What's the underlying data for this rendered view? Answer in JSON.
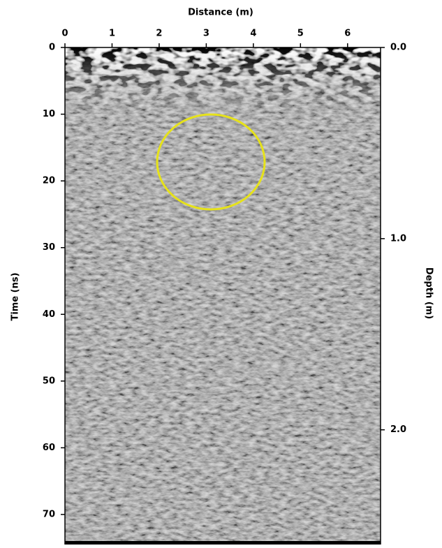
{
  "chart_data": {
    "type": "radargram",
    "xlabel": "Distance (m)",
    "ylabel": "Time (ns)",
    "y2label": "Depth (m)",
    "xlim": [
      0,
      6.7
    ],
    "xticks": [
      0,
      1,
      2,
      3,
      4,
      5,
      6
    ],
    "ylim": [
      0,
      74.5
    ],
    "yticks": [
      0,
      10,
      20,
      30,
      40,
      50,
      60,
      70
    ],
    "y2lim": [
      0,
      2.6
    ],
    "y2ticks": [
      {
        "value": 0,
        "label": "0.0"
      },
      {
        "value": 1,
        "label": "1.0"
      },
      {
        "value": 2,
        "label": "2.0"
      }
    ]
  }
}
